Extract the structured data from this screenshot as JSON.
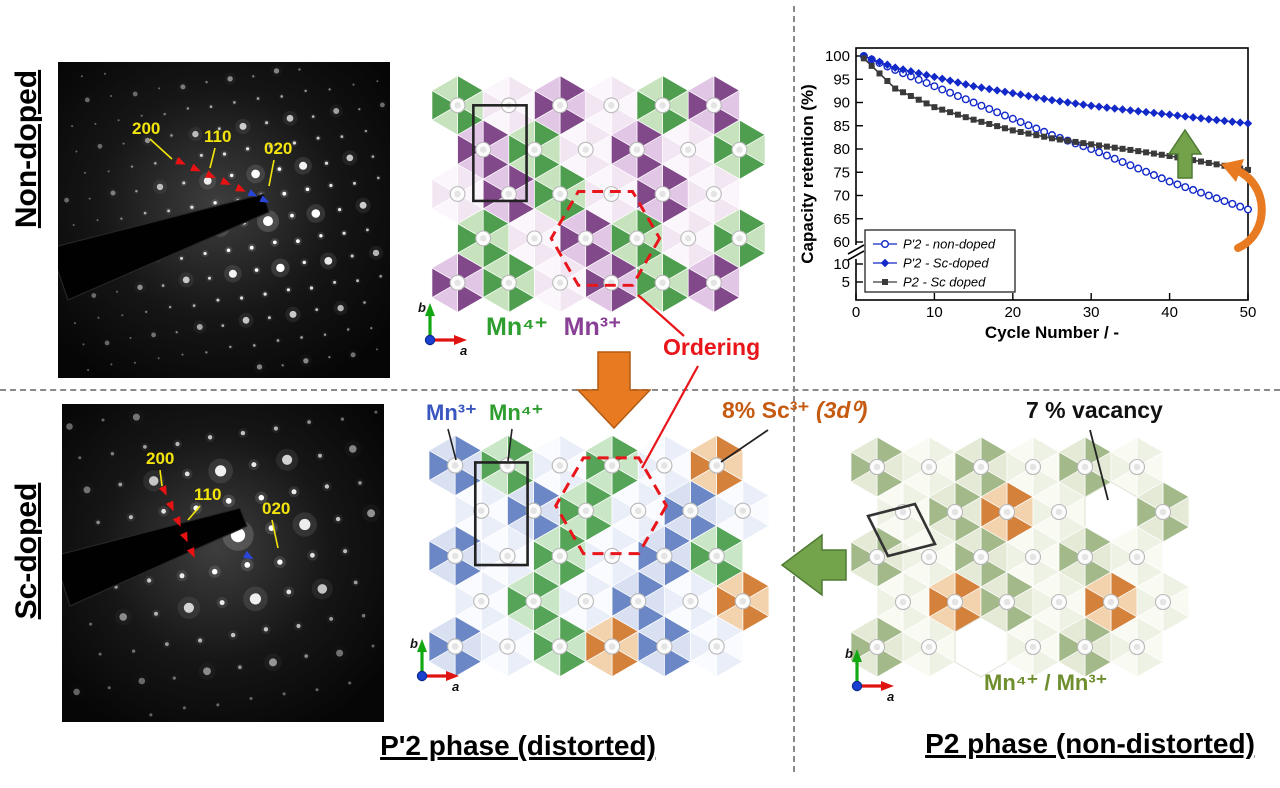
{
  "labels": {
    "non_doped": "Non-doped",
    "sc_doped": "Sc-doped",
    "mn4_green": "Mn⁴⁺",
    "mn3_purple": "Mn³⁺",
    "mn3_blue": "Mn³⁺",
    "mn4_green2": "Mn⁴⁺",
    "ordering": "Ordering",
    "sc_main": "8% Sc³⁺ ",
    "sc_ital": "(3d⁰)",
    "vacancy": "7 % vacancy",
    "mn_mixed": "Mn⁴⁺ / Mn³⁺",
    "p2prime_phase": "P'2 phase (distorted)",
    "p2_phase": "P2 phase (non-distorted)",
    "axis_a": "a",
    "axis_b": "b"
  },
  "diffraction": {
    "top": {
      "reflections": [
        "200",
        "110",
        "020"
      ]
    },
    "bottom": {
      "reflections": [
        "200",
        "110",
        "020"
      ]
    }
  },
  "colors": {
    "mn4_green": "#2e9e2e",
    "mn3_purple": "#8a3f96",
    "mn3_blue": "#3a57c0",
    "sc_orange": "#c55a11",
    "ordering_red": "#e8151a",
    "mixed_olive": "#6f8f2f",
    "arrow_orange": "#e87a22",
    "arrow_green": "#73a44c"
  },
  "chart_data": {
    "type": "line",
    "title": "",
    "xlabel": "Cycle Number / -",
    "ylabel": "Capacity retention (%)",
    "xlim": [
      0,
      50
    ],
    "x_ticks": [
      0,
      10,
      20,
      30,
      40,
      50
    ],
    "ylim_main": [
      60,
      100
    ],
    "ylim_lower": [
      0,
      10
    ],
    "y_ticks_main": [
      100,
      95,
      90,
      85,
      80,
      75,
      70,
      65,
      60
    ],
    "y_ticks_lower": [
      10,
      5
    ],
    "axis_break": true,
    "grid": false,
    "legend_position": "lower-left",
    "series": [
      {
        "name": "P'2 - non-doped",
        "marker": "open-circle",
        "color": "#1228c8",
        "x": [
          1,
          5,
          10,
          15,
          20,
          25,
          30,
          35,
          40,
          45,
          50
        ],
        "y": [
          100,
          97,
          93.5,
          90,
          86.5,
          83,
          80,
          76.5,
          73,
          70,
          67
        ]
      },
      {
        "name": "P'2 - Sc-doped",
        "marker": "filled-diamond",
        "color": "#1228c8",
        "x": [
          1,
          5,
          10,
          15,
          20,
          25,
          30,
          35,
          40,
          45,
          50
        ],
        "y": [
          100,
          97.5,
          95.5,
          93.5,
          92,
          90.5,
          89.3,
          88.3,
          87.4,
          86.4,
          85.5
        ]
      },
      {
        "name": "P2 - Sc doped",
        "marker": "filled-square",
        "color": "#3a3a3a",
        "x": [
          1,
          5,
          10,
          15,
          20,
          25,
          30,
          35,
          40,
          45,
          50
        ],
        "y": [
          99.5,
          93,
          89,
          86.3,
          84,
          82.3,
          81,
          79.8,
          78.5,
          77,
          75.5
        ]
      }
    ]
  }
}
